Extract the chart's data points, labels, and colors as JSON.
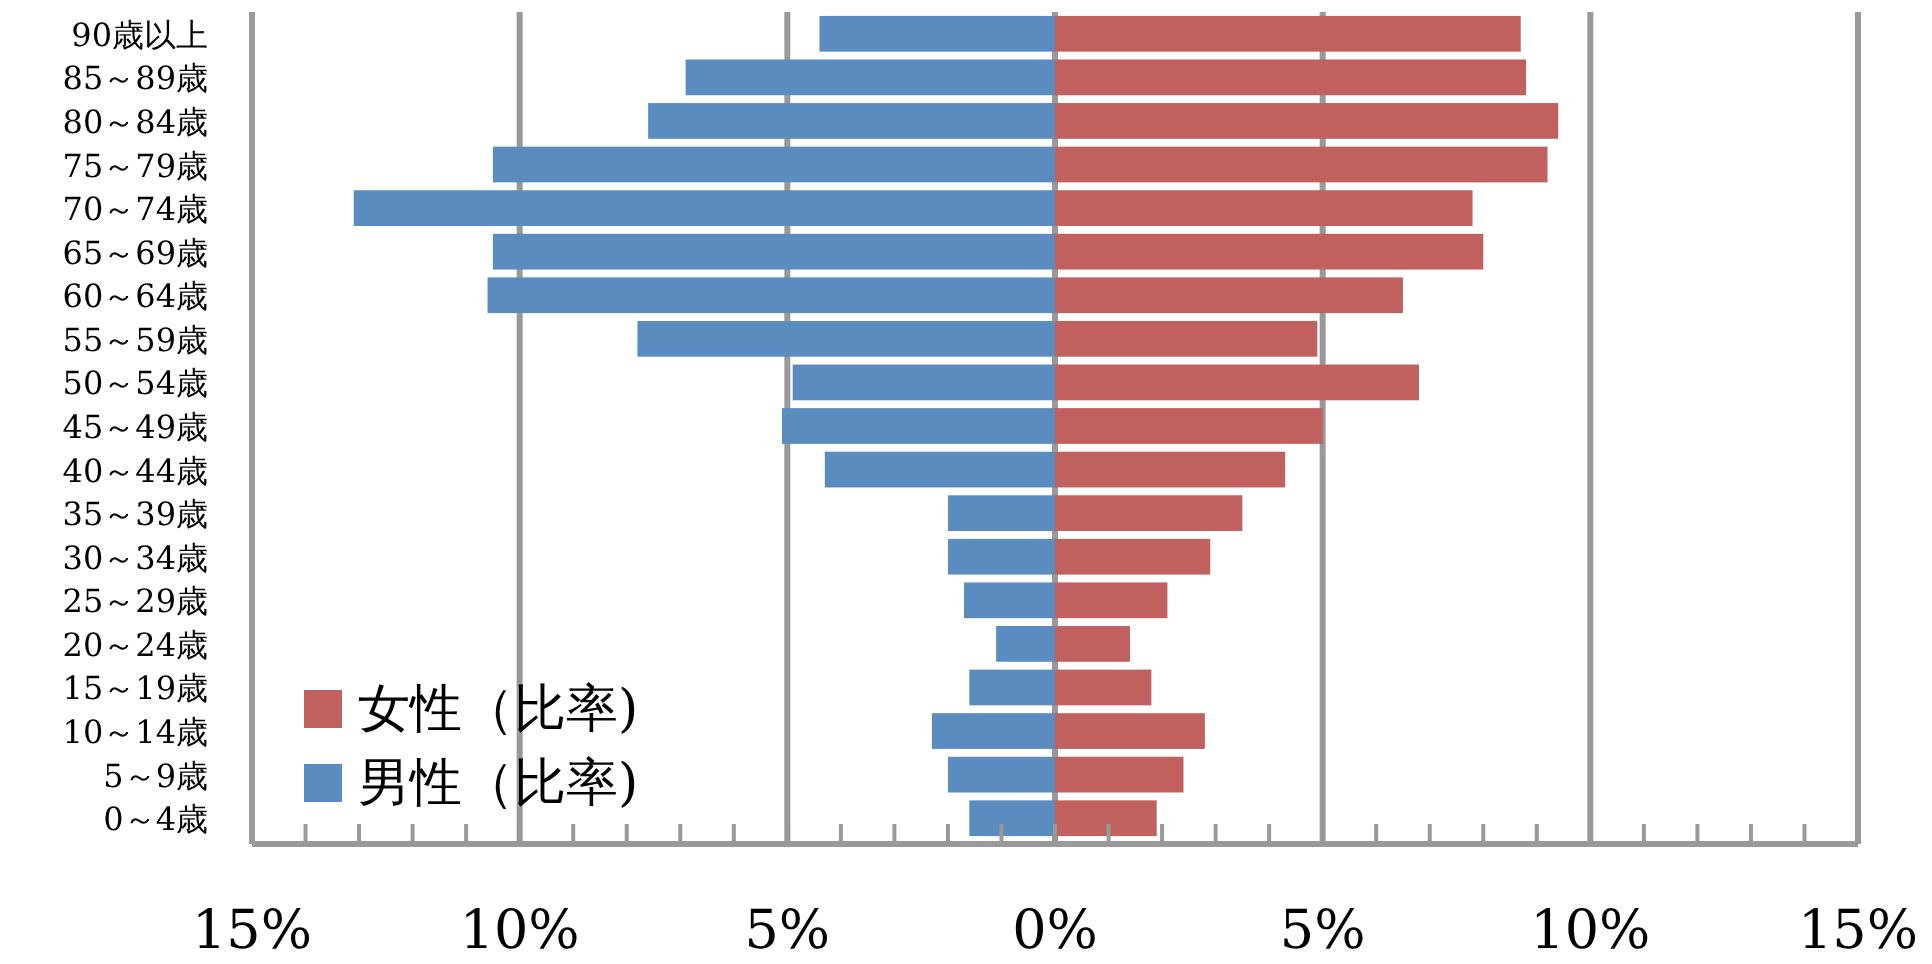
{
  "chart_data": {
    "type": "bar",
    "orientation": "horizontal",
    "stacked": true,
    "grid": "x",
    "legend": "bottom left",
    "categories": [
      "90歳以上",
      "85～89歳",
      "80～84歳",
      "75～79歳",
      "70～74歳",
      "65～69歳",
      "60～64歳",
      "55～59歳",
      "50～54歳",
      "45～49歳",
      "40～44歳",
      "35～39歳",
      "30～34歳",
      "25～29歳",
      "20～24歳",
      "15～19歳",
      "10～14歳",
      "5～9歳",
      "0～4歳"
    ],
    "series": [
      {
        "name": "女性（比率)",
        "color": "#c0605f",
        "values": [
          8.7,
          8.8,
          9.4,
          9.2,
          7.8,
          8.0,
          6.5,
          4.9,
          6.8,
          5.0,
          4.3,
          3.5,
          2.9,
          2.1,
          1.4,
          1.8,
          2.8,
          2.4,
          1.9
        ]
      },
      {
        "name": "男性（比率)",
        "color": "#5b8cc0",
        "values": [
          -4.4,
          -6.9,
          -7.6,
          -10.5,
          -13.1,
          -10.5,
          -10.6,
          -7.8,
          -4.9,
          -5.1,
          -4.3,
          -2.0,
          -2.0,
          -1.7,
          -1.1,
          -1.6,
          -2.3,
          -2.0,
          -1.6
        ]
      }
    ],
    "xlim": [
      -15,
      15
    ],
    "xticks": [
      {
        "value": -15,
        "label": "15%"
      },
      {
        "value": -14,
        "label": null
      },
      {
        "value": -13,
        "label": null
      },
      {
        "value": -12,
        "label": null
      },
      {
        "value": -11,
        "label": null
      },
      {
        "value": -10,
        "label": "10%"
      },
      {
        "value": -9,
        "label": null
      },
      {
        "value": -8,
        "label": null
      },
      {
        "value": -7,
        "label": null
      },
      {
        "value": -6,
        "label": null
      },
      {
        "value": -5,
        "label": "5%"
      },
      {
        "value": -4,
        "label": null
      },
      {
        "value": -3,
        "label": null
      },
      {
        "value": -2,
        "label": null
      },
      {
        "value": -1,
        "label": null
      },
      {
        "value": 0,
        "label": "0%"
      },
      {
        "value": 1,
        "label": null
      },
      {
        "value": 2,
        "label": null
      },
      {
        "value": 3,
        "label": null
      },
      {
        "value": 4,
        "label": null
      },
      {
        "value": 5,
        "label": "5%"
      },
      {
        "value": 6,
        "label": null
      },
      {
        "value": 7,
        "label": null
      },
      {
        "value": 8,
        "label": null
      },
      {
        "value": 9,
        "label": null
      },
      {
        "value": 10,
        "label": "10%"
      },
      {
        "value": 11,
        "label": null
      },
      {
        "value": 12,
        "label": null
      },
      {
        "value": 13,
        "label": null
      },
      {
        "value": 14,
        "label": null
      },
      {
        "value": 15,
        "label": "15%"
      }
    ]
  }
}
